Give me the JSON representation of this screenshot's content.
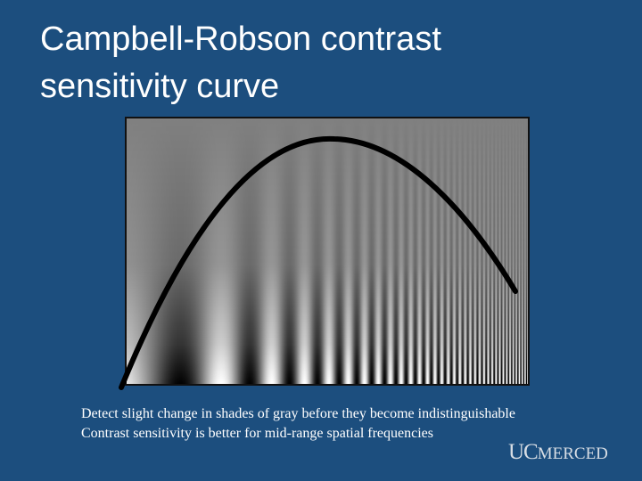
{
  "slide": {
    "title": "Campbell-Robson contrast sensitivity curve",
    "body": [
      "Detect slight change in shades of gray before they become indistinguishable",
      "Contrast sensitivity is better for mid-range spatial frequencies"
    ],
    "logo": {
      "uc": "UC",
      "merced": "MERCED"
    }
  }
}
